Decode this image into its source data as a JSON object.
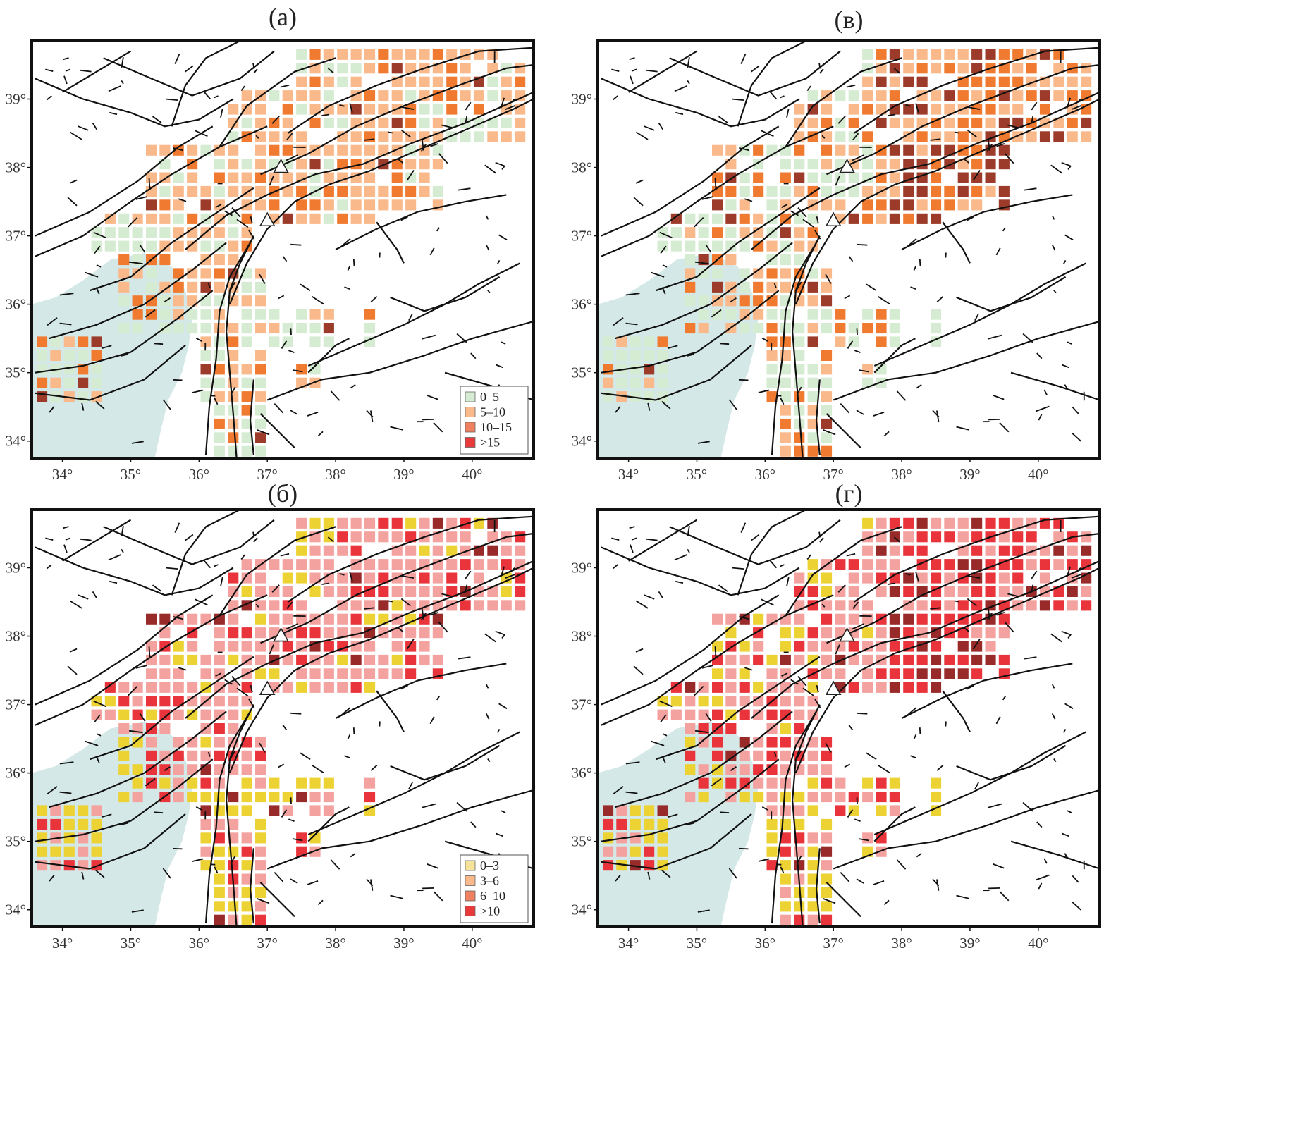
{
  "figure": {
    "panels": [
      {
        "id": "a",
        "title": "(a)",
        "metric": "M1",
        "legend": 1
      },
      {
        "id": "v",
        "title": "(в)",
        "metric": "M2",
        "legend": null
      },
      {
        "id": "b",
        "title": "(б)",
        "metric": "M3",
        "legend": 2
      },
      {
        "id": "g",
        "title": "(г)",
        "metric": "M4",
        "legend": null
      }
    ],
    "lon_ticks": [
      "34°",
      "35°",
      "36°",
      "37°",
      "38°",
      "39°",
      "40°"
    ],
    "lat_ticks": [
      "34°",
      "35°",
      "36°",
      "37°",
      "38°",
      "39°"
    ],
    "extent": {
      "lon": [
        33.55,
        40.9
      ],
      "lat": [
        33.75,
        39.85
      ]
    },
    "legends": [
      {
        "items": [
          {
            "label": "0–5",
            "color": "#d6ecd2"
          },
          {
            "label": "5–10",
            "color": "#f9b98a"
          },
          {
            "label": "10–15",
            "color": "#ef8060"
          },
          {
            "label": ">15",
            "color": "#e83a3a"
          }
        ]
      },
      {
        "items": [
          {
            "label": "0–3",
            "color": "#f6e39a"
          },
          {
            "label": "3–6",
            "color": "#f9b98a"
          },
          {
            "label": "6–10",
            "color": "#ef8060"
          },
          {
            "label": ">10",
            "color": "#e83a3a"
          }
        ]
      }
    ],
    "cell_palettes": {
      "P1": [
        "#d6ecd2",
        "#f9b98a",
        "#ef7a30",
        "#9c3b2a"
      ],
      "P2": [
        "#ecd232",
        "#f4a2a0",
        "#e8343a",
        "#992a2a"
      ]
    },
    "stations": [
      {
        "lon": 37.2,
        "lat": 38.0
      },
      {
        "lon": 37.0,
        "lat": 37.22
      }
    ],
    "sea_color": "#d4e9e7"
  }
}
